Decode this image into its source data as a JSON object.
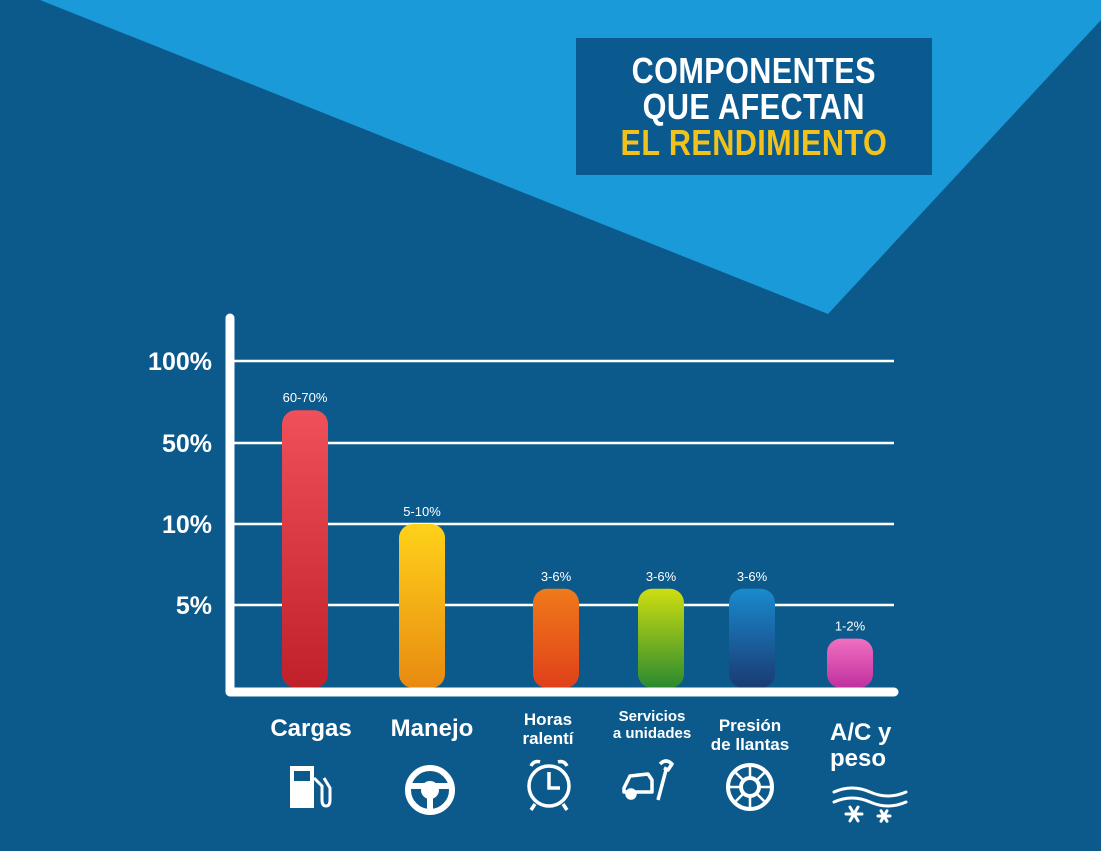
{
  "title": {
    "line1": "COMPONENTES",
    "line2": "QUE AFECTAN",
    "line3": "EL RENDIMIENTO"
  },
  "colors": {
    "background": "#0c5a8c",
    "triangle": "#1a9ad9",
    "title_box": "#0a5a8f",
    "accent": "#f2c21c",
    "axis": "#ffffff"
  },
  "chart_data": {
    "type": "bar",
    "categories": [
      "Cargas",
      "Manejo",
      "Horas ralentí",
      "Servicios a unidades",
      "Presión de llantas",
      "A/C y peso"
    ],
    "category_lines": [
      [
        "Cargas"
      ],
      [
        "Manejo"
      ],
      [
        "Horas",
        "ralentí"
      ],
      [
        "Servicios",
        "a unidades"
      ],
      [
        "Presión",
        "de llantas"
      ],
      [
        "A/C y",
        "peso"
      ]
    ],
    "value_labels": [
      "60-70%",
      "5-10%",
      "3-6%",
      "3-6%",
      "3-6%",
      "1-2%"
    ],
    "ranges": [
      [
        60,
        70
      ],
      [
        5,
        10
      ],
      [
        3,
        6
      ],
      [
        3,
        6
      ],
      [
        3,
        6
      ],
      [
        1,
        2
      ]
    ],
    "yticks": [
      "100%",
      "50%",
      "10%",
      "5%"
    ],
    "grid": true,
    "bar_colors": [
      [
        "#f0505a",
        "#c0202a"
      ],
      [
        "#ffd21a",
        "#e88a10"
      ],
      [
        "#f07a1a",
        "#e0401a"
      ],
      [
        "#cede10",
        "#2a8a30"
      ],
      [
        "#1a8ace",
        "#1a3a72"
      ],
      [
        "#f070c0",
        "#c030a0"
      ]
    ],
    "icons": [
      "fuel-pump-icon",
      "steering-wheel-icon",
      "alarm-clock-icon",
      "car-wrench-icon",
      "tire-icon",
      "ac-snow-icon"
    ]
  }
}
